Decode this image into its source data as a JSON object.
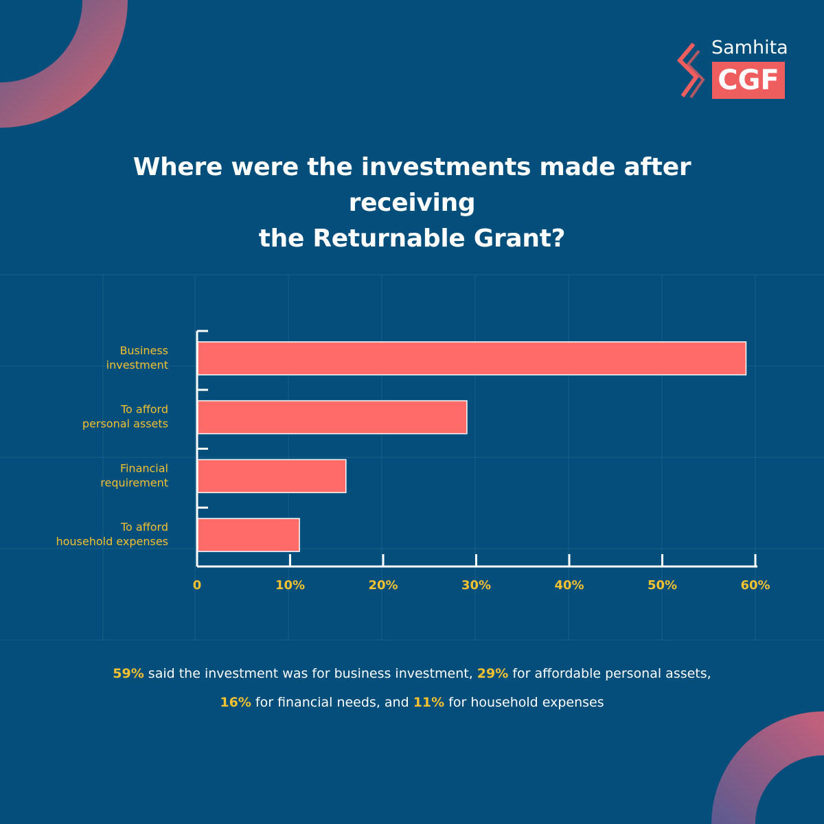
{
  "brand": {
    "name_top": "Samhita",
    "name_box": "CGF",
    "accent": "#ef5e5e"
  },
  "colors": {
    "background": "#034e7b",
    "bar": "#ff6b69",
    "label": "#f4c130",
    "axis": "#ffffff"
  },
  "title": {
    "line1": "Where were the investments made after receiving",
    "line2": "the Returnable Grant?"
  },
  "chart_data": {
    "type": "bar",
    "orientation": "horizontal",
    "categories": [
      [
        "Business",
        "investment"
      ],
      [
        "To afford",
        "personal assets"
      ],
      [
        "Financial",
        "requirement"
      ],
      [
        "To afford",
        "household expenses"
      ]
    ],
    "values": [
      59,
      29,
      16,
      11
    ],
    "xlim": [
      0,
      60
    ],
    "xticks": [
      "0",
      "10%",
      "20%",
      "30%",
      "40%",
      "50%",
      "60%"
    ],
    "title": "Where were the investments made after receiving the Returnable Grant?",
    "xlabel": "",
    "ylabel": ""
  },
  "summary": {
    "line1": [
      {
        "text": "59%",
        "highlight": true
      },
      {
        "text": " said the investment was for business investment, ",
        "highlight": false
      },
      {
        "text": "29%",
        "highlight": true
      },
      {
        "text": " for affordable personal assets,",
        "highlight": false
      }
    ],
    "line2": [
      {
        "text": "16%",
        "highlight": true
      },
      {
        "text": " for financial needs, and ",
        "highlight": false
      },
      {
        "text": "11%",
        "highlight": true
      },
      {
        "text": " for household expenses",
        "highlight": false
      }
    ]
  }
}
